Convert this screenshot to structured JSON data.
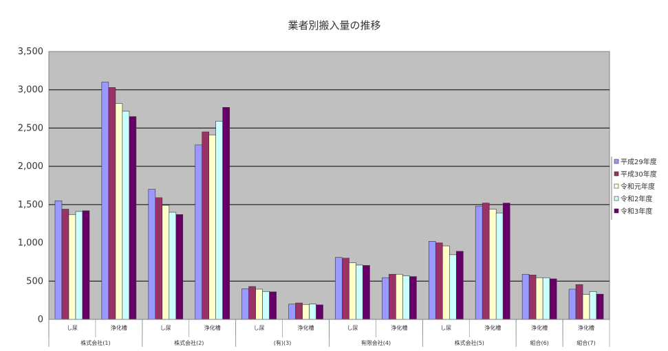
{
  "chart_data": {
    "type": "bar",
    "title": "業者別搬入量の推移",
    "xlabel": "",
    "ylabel": "",
    "ylim": [
      0,
      3500
    ],
    "yticks": [
      "0",
      "500",
      "1,000",
      "1,500",
      "2,000",
      "2,500",
      "3,000",
      "3,500"
    ],
    "grid": "horizontal at 500, 1500, 2000, 2500, 3000",
    "legend_position": "right",
    "colors": [
      "#9999ff",
      "#993366",
      "#ffffcc",
      "#ccffff",
      "#660066"
    ],
    "categories": [
      {
        "sub": "し尿",
        "group": "株式会社(1)"
      },
      {
        "sub": "浄化槽",
        "group": "株式会社(1)"
      },
      {
        "sub": "し尿",
        "group": "株式会社(2)"
      },
      {
        "sub": "浄化槽",
        "group": "株式会社(2)"
      },
      {
        "sub": "し尿",
        "group": "(有)(3)"
      },
      {
        "sub": "浄化槽",
        "group": "(有)(3)"
      },
      {
        "sub": "し尿",
        "group": "有限会社(4)"
      },
      {
        "sub": "浄化槽",
        "group": "有限会社(4)"
      },
      {
        "sub": "し尿",
        "group": "株式会社(5)"
      },
      {
        "sub": "浄化槽",
        "group": "株式会社(5)"
      },
      {
        "sub": "浄化槽",
        "group": "組合(6)"
      },
      {
        "sub": "浄化槽",
        "group": "組合(7)"
      }
    ],
    "groups": [
      {
        "label": "株式会社(1)",
        "span": 2
      },
      {
        "label": "株式会社(2)",
        "span": 2
      },
      {
        "label": "(有)(3)",
        "span": 2
      },
      {
        "label": "有限会社(4)",
        "span": 2
      },
      {
        "label": "株式会社(5)",
        "span": 2
      },
      {
        "label": "組合(6)",
        "span": 1
      },
      {
        "label": "組合(7)",
        "span": 1
      }
    ],
    "series": [
      {
        "name": "平成29年度",
        "values": [
          1550,
          3100,
          1700,
          2280,
          400,
          200,
          810,
          545,
          1020,
          1480,
          590,
          395
        ]
      },
      {
        "name": "平成30年度",
        "values": [
          1440,
          3030,
          1590,
          2450,
          430,
          215,
          800,
          590,
          1000,
          1520,
          580,
          455
        ]
      },
      {
        "name": "令和元年度",
        "values": [
          1370,
          2820,
          1490,
          2410,
          395,
          195,
          740,
          590,
          960,
          1440,
          545,
          325
        ]
      },
      {
        "name": "令和2年度",
        "values": [
          1410,
          2720,
          1400,
          2590,
          365,
          200,
          710,
          570,
          845,
          1390,
          545,
          365
        ]
      },
      {
        "name": "令和3年度",
        "values": [
          1420,
          2650,
          1370,
          2770,
          360,
          190,
          705,
          560,
          890,
          1520,
          530,
          330
        ]
      }
    ]
  }
}
